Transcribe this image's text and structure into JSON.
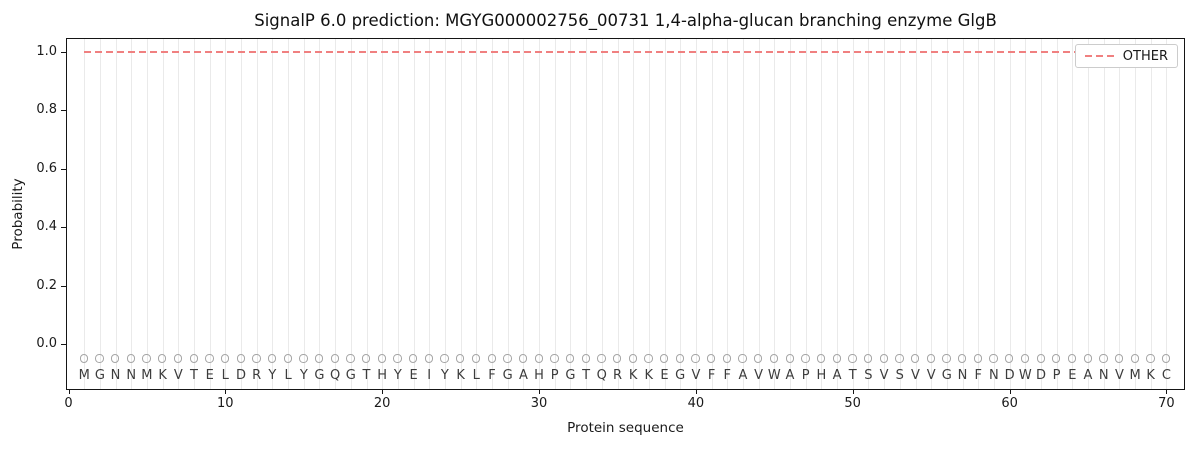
{
  "chart_data": {
    "type": "line",
    "title": "SignalP 6.0 prediction: MGYG000002756_00731 1,4-alpha-glucan branching enzyme GlgB",
    "xlabel": "Protein sequence",
    "ylabel": "Probability",
    "xlim": [
      -0.095,
      71.12
    ],
    "ylim": [
      -0.153,
      1.044
    ],
    "xticks": [
      0,
      10,
      20,
      30,
      40,
      50,
      60,
      70
    ],
    "yticks": [
      "0.0",
      "0.2",
      "0.4",
      "0.6",
      "0.8",
      "1.0"
    ],
    "grid": "vertical gridline at each residue position",
    "legend_position": "upper right",
    "series": [
      {
        "name": "OTHER",
        "color": "#f08080",
        "linestyle": "dashed",
        "linewidth": 2,
        "x_start": 1,
        "x_end": 70,
        "y_constant": 1.0
      }
    ],
    "sequence": "MGNNMKVTELDRYLYGQGTHYEIYKLFGAHPGTQRKKEGVFFAVWAPHATSVSVVGNFNDWDPEANVMKC",
    "sequence_markers": {
      "symbol": "open-circle",
      "marker_y": -0.05,
      "letter_y": -0.107,
      "marker_color": "#a5a5a5"
    }
  }
}
